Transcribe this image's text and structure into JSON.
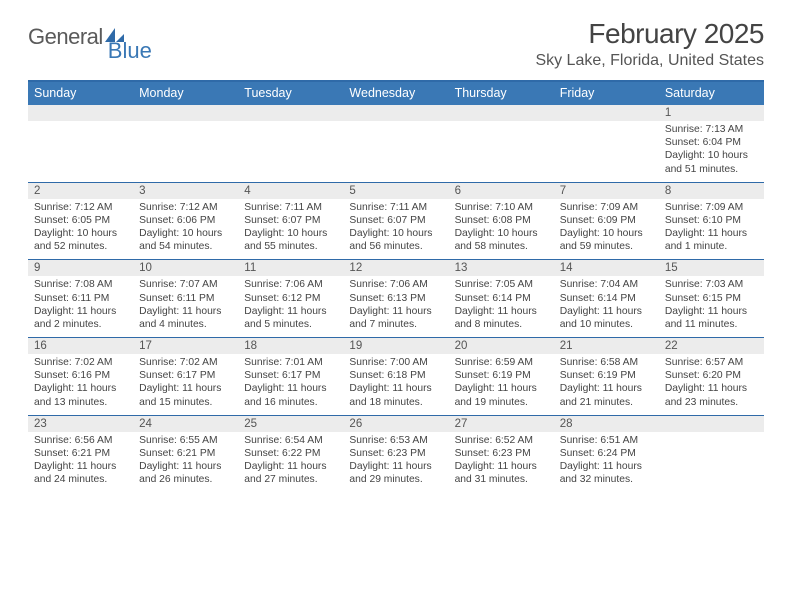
{
  "logo": {
    "text1": "General",
    "text2": "Blue"
  },
  "title": "February 2025",
  "location": "Sky Lake, Florida, United States",
  "colors": {
    "header_bg": "#3a78b5",
    "rule": "#2f6aa8",
    "daynum_bg": "#ececec",
    "text": "#444444",
    "page_bg": "#ffffff"
  },
  "day_names": [
    "Sunday",
    "Monday",
    "Tuesday",
    "Wednesday",
    "Thursday",
    "Friday",
    "Saturday"
  ],
  "weeks": [
    [
      {
        "n": "",
        "lines": []
      },
      {
        "n": "",
        "lines": []
      },
      {
        "n": "",
        "lines": []
      },
      {
        "n": "",
        "lines": []
      },
      {
        "n": "",
        "lines": []
      },
      {
        "n": "",
        "lines": []
      },
      {
        "n": "1",
        "lines": [
          "Sunrise: 7:13 AM",
          "Sunset: 6:04 PM",
          "Daylight: 10 hours and 51 minutes."
        ]
      }
    ],
    [
      {
        "n": "2",
        "lines": [
          "Sunrise: 7:12 AM",
          "Sunset: 6:05 PM",
          "Daylight: 10 hours and 52 minutes."
        ]
      },
      {
        "n": "3",
        "lines": [
          "Sunrise: 7:12 AM",
          "Sunset: 6:06 PM",
          "Daylight: 10 hours and 54 minutes."
        ]
      },
      {
        "n": "4",
        "lines": [
          "Sunrise: 7:11 AM",
          "Sunset: 6:07 PM",
          "Daylight: 10 hours and 55 minutes."
        ]
      },
      {
        "n": "5",
        "lines": [
          "Sunrise: 7:11 AM",
          "Sunset: 6:07 PM",
          "Daylight: 10 hours and 56 minutes."
        ]
      },
      {
        "n": "6",
        "lines": [
          "Sunrise: 7:10 AM",
          "Sunset: 6:08 PM",
          "Daylight: 10 hours and 58 minutes."
        ]
      },
      {
        "n": "7",
        "lines": [
          "Sunrise: 7:09 AM",
          "Sunset: 6:09 PM",
          "Daylight: 10 hours and 59 minutes."
        ]
      },
      {
        "n": "8",
        "lines": [
          "Sunrise: 7:09 AM",
          "Sunset: 6:10 PM",
          "Daylight: 11 hours and 1 minute."
        ]
      }
    ],
    [
      {
        "n": "9",
        "lines": [
          "Sunrise: 7:08 AM",
          "Sunset: 6:11 PM",
          "Daylight: 11 hours and 2 minutes."
        ]
      },
      {
        "n": "10",
        "lines": [
          "Sunrise: 7:07 AM",
          "Sunset: 6:11 PM",
          "Daylight: 11 hours and 4 minutes."
        ]
      },
      {
        "n": "11",
        "lines": [
          "Sunrise: 7:06 AM",
          "Sunset: 6:12 PM",
          "Daylight: 11 hours and 5 minutes."
        ]
      },
      {
        "n": "12",
        "lines": [
          "Sunrise: 7:06 AM",
          "Sunset: 6:13 PM",
          "Daylight: 11 hours and 7 minutes."
        ]
      },
      {
        "n": "13",
        "lines": [
          "Sunrise: 7:05 AM",
          "Sunset: 6:14 PM",
          "Daylight: 11 hours and 8 minutes."
        ]
      },
      {
        "n": "14",
        "lines": [
          "Sunrise: 7:04 AM",
          "Sunset: 6:14 PM",
          "Daylight: 11 hours and 10 minutes."
        ]
      },
      {
        "n": "15",
        "lines": [
          "Sunrise: 7:03 AM",
          "Sunset: 6:15 PM",
          "Daylight: 11 hours and 11 minutes."
        ]
      }
    ],
    [
      {
        "n": "16",
        "lines": [
          "Sunrise: 7:02 AM",
          "Sunset: 6:16 PM",
          "Daylight: 11 hours and 13 minutes."
        ]
      },
      {
        "n": "17",
        "lines": [
          "Sunrise: 7:02 AM",
          "Sunset: 6:17 PM",
          "Daylight: 11 hours and 15 minutes."
        ]
      },
      {
        "n": "18",
        "lines": [
          "Sunrise: 7:01 AM",
          "Sunset: 6:17 PM",
          "Daylight: 11 hours and 16 minutes."
        ]
      },
      {
        "n": "19",
        "lines": [
          "Sunrise: 7:00 AM",
          "Sunset: 6:18 PM",
          "Daylight: 11 hours and 18 minutes."
        ]
      },
      {
        "n": "20",
        "lines": [
          "Sunrise: 6:59 AM",
          "Sunset: 6:19 PM",
          "Daylight: 11 hours and 19 minutes."
        ]
      },
      {
        "n": "21",
        "lines": [
          "Sunrise: 6:58 AM",
          "Sunset: 6:19 PM",
          "Daylight: 11 hours and 21 minutes."
        ]
      },
      {
        "n": "22",
        "lines": [
          "Sunrise: 6:57 AM",
          "Sunset: 6:20 PM",
          "Daylight: 11 hours and 23 minutes."
        ]
      }
    ],
    [
      {
        "n": "23",
        "lines": [
          "Sunrise: 6:56 AM",
          "Sunset: 6:21 PM",
          "Daylight: 11 hours and 24 minutes."
        ]
      },
      {
        "n": "24",
        "lines": [
          "Sunrise: 6:55 AM",
          "Sunset: 6:21 PM",
          "Daylight: 11 hours and 26 minutes."
        ]
      },
      {
        "n": "25",
        "lines": [
          "Sunrise: 6:54 AM",
          "Sunset: 6:22 PM",
          "Daylight: 11 hours and 27 minutes."
        ]
      },
      {
        "n": "26",
        "lines": [
          "Sunrise: 6:53 AM",
          "Sunset: 6:23 PM",
          "Daylight: 11 hours and 29 minutes."
        ]
      },
      {
        "n": "27",
        "lines": [
          "Sunrise: 6:52 AM",
          "Sunset: 6:23 PM",
          "Daylight: 11 hours and 31 minutes."
        ]
      },
      {
        "n": "28",
        "lines": [
          "Sunrise: 6:51 AM",
          "Sunset: 6:24 PM",
          "Daylight: 11 hours and 32 minutes."
        ]
      },
      {
        "n": "",
        "lines": []
      }
    ]
  ]
}
